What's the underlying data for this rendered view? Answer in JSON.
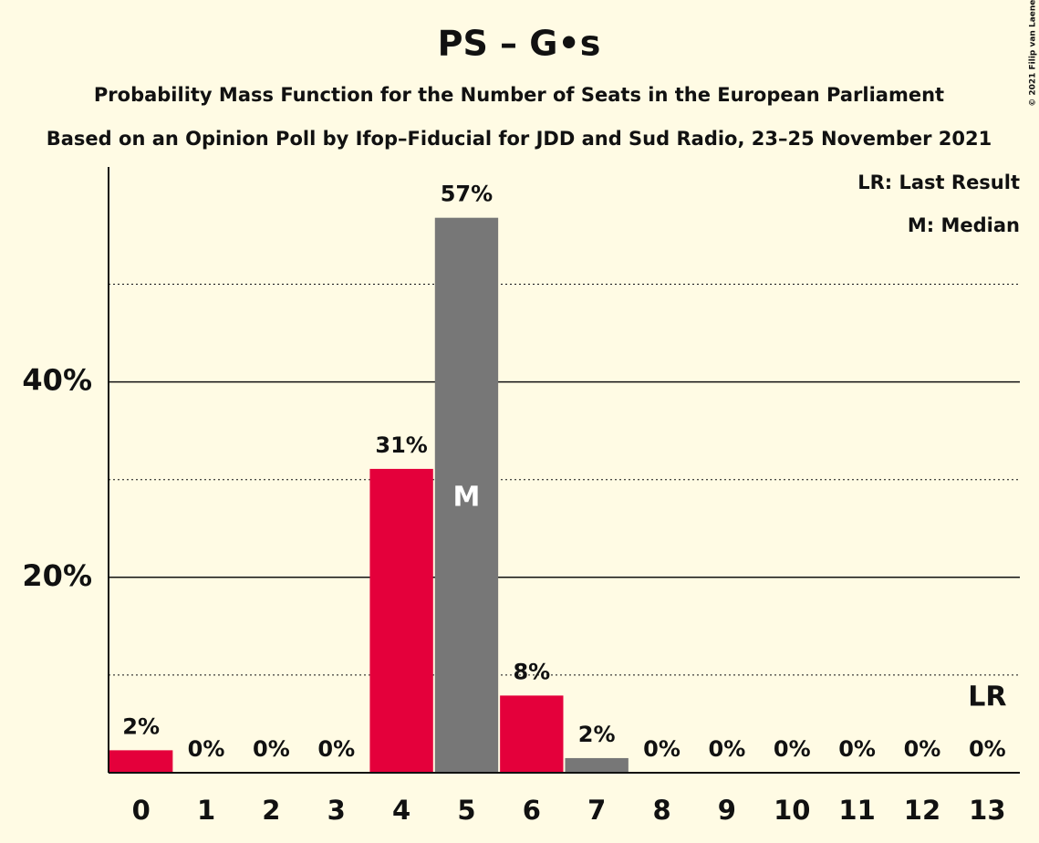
{
  "chart_data": {
    "type": "bar",
    "title": "PS – G•s",
    "subtitle": "Probability Mass Function for the Number of Seats in the European Parliament",
    "subtitle2": "Based on an Opinion Poll by Ifop–Fiducial for JDD and Sud Radio, 23–25 November 2021",
    "copyright": "© 2021 Filip van Laenen",
    "legend": [
      "LR: Last Result",
      "M: Median"
    ],
    "categories": [
      "0",
      "1",
      "2",
      "3",
      "4",
      "5",
      "6",
      "7",
      "8",
      "9",
      "10",
      "11",
      "12",
      "13"
    ],
    "values": [
      2.3,
      0,
      0,
      0,
      31.1,
      56.8,
      7.9,
      1.5,
      0,
      0,
      0,
      0,
      0,
      0
    ],
    "value_labels": [
      "2%",
      "0%",
      "0%",
      "0%",
      "31%",
      "57%",
      "8%",
      "2%",
      "0%",
      "0%",
      "0%",
      "0%",
      "0%",
      "0%"
    ],
    "colors": [
      "#e4003b",
      "#e4003b",
      "#e4003b",
      "#e4003b",
      "#e4003b",
      "#777777",
      "#e4003b",
      "#777777",
      "#e4003b",
      "#e4003b",
      "#e4003b",
      "#e4003b",
      "#e4003b",
      "#e4003b"
    ],
    "median_index": 5,
    "median_label": "M",
    "last_result_index": 13,
    "last_result_label": "LR",
    "ylim": [
      0,
      62
    ],
    "yticks": [
      {
        "value": 20,
        "label": "20%"
      },
      {
        "value": 40,
        "label": "40%"
      }
    ],
    "minor_gridlines": [
      10,
      30,
      50
    ],
    "grid": true
  }
}
